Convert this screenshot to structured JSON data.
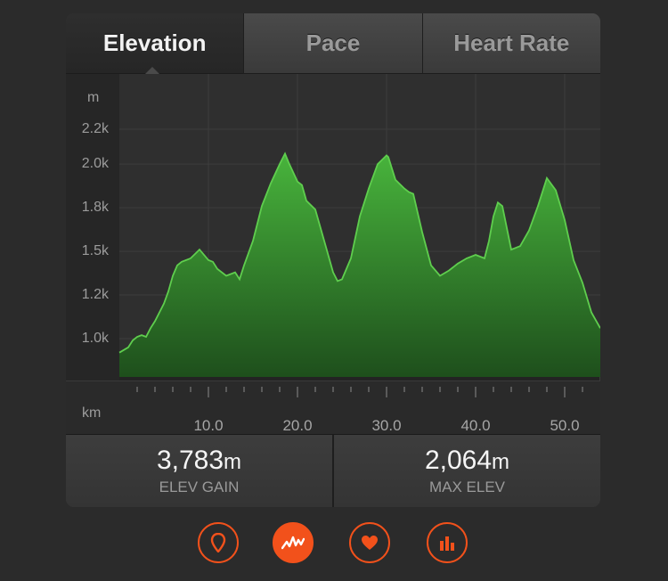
{
  "tabs": [
    {
      "label": "Elevation",
      "active": true
    },
    {
      "label": "Pace",
      "active": false
    },
    {
      "label": "Heart Rate",
      "active": false
    }
  ],
  "chart_data": {
    "type": "area",
    "xlabel": "km",
    "ylabel": "m",
    "xlim": [
      0,
      54
    ],
    "ylim": [
      870,
      2200
    ],
    "xticks": [
      10,
      20,
      30,
      40,
      50
    ],
    "xtick_labels": [
      "10.0",
      "20.0",
      "30.0",
      "40.0",
      "50.0"
    ],
    "yticks": [
      1000,
      1250,
      1500,
      1750,
      2000,
      2200
    ],
    "ytick_labels": [
      "1.0k",
      "1.2k",
      "1.5k",
      "1.8k",
      "2.0k",
      "2.2k"
    ],
    "grid": true,
    "color": "#3a9e32",
    "series": [
      {
        "x": [
          0,
          1,
          1.5,
          2,
          2.5,
          3,
          3.5,
          4,
          5,
          5.5,
          6,
          6.5,
          7,
          7.5,
          8,
          9,
          10,
          10.5,
          11,
          12,
          13,
          13.5,
          14,
          15,
          16,
          17,
          18,
          18.6,
          19,
          20,
          20.5,
          21,
          22,
          23,
          24,
          24.5,
          25,
          26,
          27,
          28,
          29,
          30,
          30.2,
          31,
          32,
          32.5,
          33,
          34,
          35,
          36,
          37,
          38,
          39,
          40,
          41,
          41.5,
          42,
          42.5,
          43,
          44,
          45,
          46,
          47,
          48,
          49,
          50,
          51,
          52,
          53,
          54
        ],
        "y": [
          920,
          950,
          990,
          1010,
          1020,
          1010,
          1060,
          1100,
          1200,
          1270,
          1360,
          1420,
          1440,
          1450,
          1460,
          1510,
          1450,
          1440,
          1400,
          1360,
          1380,
          1340,
          1420,
          1560,
          1760,
          1890,
          2000,
          2060,
          2010,
          1900,
          1880,
          1790,
          1740,
          1560,
          1380,
          1330,
          1340,
          1460,
          1700,
          1860,
          2000,
          2050,
          2040,
          1910,
          1860,
          1840,
          1830,
          1610,
          1420,
          1360,
          1390,
          1430,
          1460,
          1480,
          1460,
          1560,
          1700,
          1780,
          1760,
          1510,
          1530,
          1620,
          1760,
          1920,
          1850,
          1680,
          1450,
          1320,
          1150,
          1060
        ]
      }
    ]
  },
  "stats": [
    {
      "value": "3,783",
      "unit": "m",
      "label": "ELEV GAIN"
    },
    {
      "value": "2,064",
      "unit": "m",
      "label": "MAX ELEV"
    }
  ],
  "icons": [
    {
      "name": "location-pin-icon",
      "active": false
    },
    {
      "name": "activity-graph-icon",
      "active": true
    },
    {
      "name": "heart-icon",
      "active": false
    },
    {
      "name": "bar-chart-icon",
      "active": false
    }
  ],
  "accent_color": "#f2511b"
}
